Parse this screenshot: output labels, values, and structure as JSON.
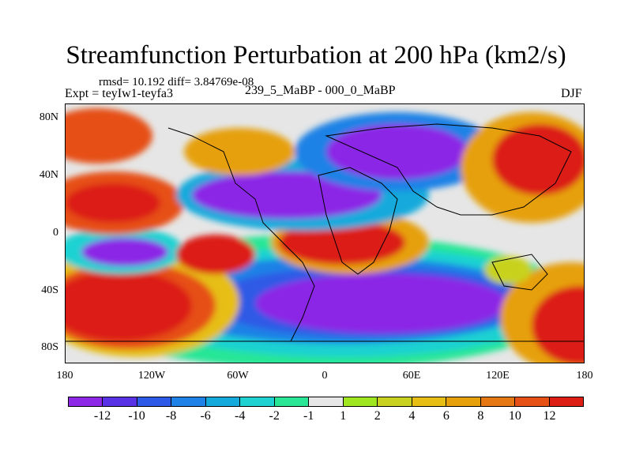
{
  "title": "Streamfunction Perturbation at 200 hPa (km2/s)",
  "stats": "rmsd= 10.192 diff= 3.84769e-08",
  "experiment": "Expt = teyIw1-teyfa3",
  "center_label": "239_5_MaBP - 000_0_MaBP",
  "season": "DJF",
  "axes": {
    "y_ticks": [
      "80N",
      "40N",
      "0",
      "40S",
      "80S"
    ],
    "x_ticks": [
      "180",
      "120W",
      "60W",
      "0",
      "60E",
      "120E",
      "180"
    ]
  },
  "colorbar": {
    "colors": [
      "#8c28e6",
      "#5a32e6",
      "#2d5ae6",
      "#1e82e6",
      "#14aadc",
      "#1ed2d2",
      "#28e696",
      "#e6e6e6",
      "#a0e61e",
      "#c8d21e",
      "#e6be14",
      "#e6a00a",
      "#e67814",
      "#e65014",
      "#dc1e14"
    ],
    "labels": [
      "-12",
      "-10",
      "-8",
      "-6",
      "-4",
      "-2",
      "-1",
      "1",
      "2",
      "4",
      "6",
      "8",
      "10",
      "12"
    ]
  }
}
